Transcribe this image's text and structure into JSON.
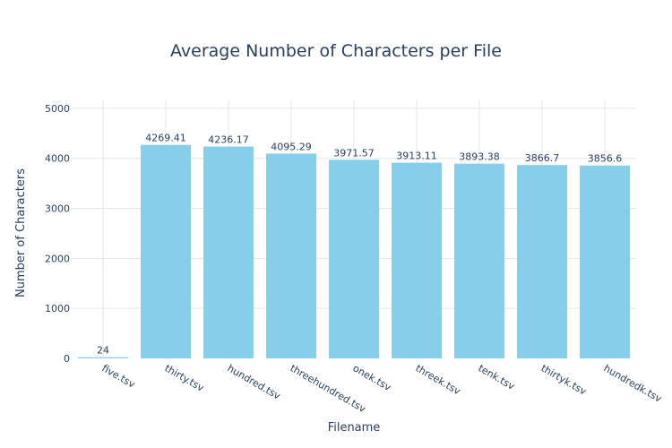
{
  "chart_data": {
    "type": "bar",
    "title": "Average Number of Characters per File",
    "xlabel": "Filename",
    "ylabel": "Number of Characters",
    "categories": [
      "five.tsv",
      "thirty.tsv",
      "hundred.tsv",
      "threehundred.tsv",
      "onek.tsv",
      "threek.tsv",
      "tenk.tsv",
      "thirtyk.tsv",
      "hundredk.tsv"
    ],
    "values": [
      24,
      4269.41,
      4236.17,
      4095.29,
      3971.57,
      3913.11,
      3893.38,
      3866.7,
      3856.6
    ],
    "data_labels": [
      "24",
      "4269.41",
      "4236.17",
      "4095.29",
      "3971.57",
      "3913.11",
      "3893.38",
      "3866.7",
      "3856.6"
    ],
    "ylim": [
      0,
      5160
    ],
    "yticks": [
      0,
      1000,
      2000,
      3000,
      4000,
      5000
    ],
    "grid": true,
    "bar_color": "#87ceeb",
    "text_color": "#2a3f5f",
    "legend": "none"
  }
}
